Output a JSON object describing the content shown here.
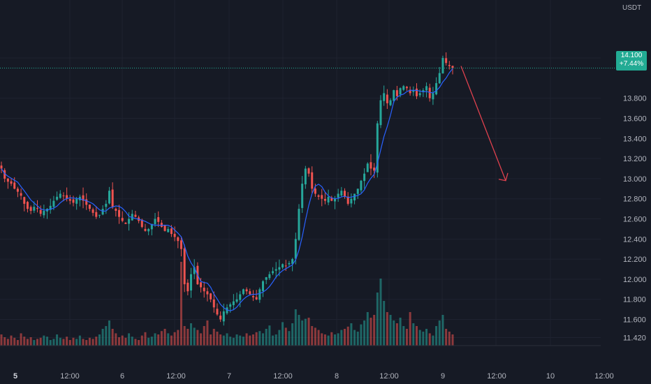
{
  "price_axis": {
    "currency": "USDT",
    "ticks": [
      "14.200",
      "13.800",
      "13.600",
      "13.400",
      "13.200",
      "13.000",
      "12.800",
      "12.600",
      "12.400",
      "12.200",
      "12.000",
      "11.800",
      "11.600",
      "11.420"
    ],
    "tick_values": [
      14.2,
      13.8,
      13.6,
      13.4,
      13.2,
      13.0,
      12.8,
      12.6,
      12.4,
      12.2,
      12.0,
      11.8,
      11.6,
      11.42
    ]
  },
  "last_price": {
    "value": "14.100",
    "change": "+7.44%"
  },
  "time_axis": {
    "labels": [
      {
        "text": "5",
        "major": true
      },
      {
        "text": "12:00",
        "major": false
      },
      {
        "text": "6",
        "major": false
      },
      {
        "text": "12:00",
        "major": false
      },
      {
        "text": "7",
        "major": false
      },
      {
        "text": "12:00",
        "major": false
      },
      {
        "text": "8",
        "major": false
      },
      {
        "text": "12:00",
        "major": false
      },
      {
        "text": "9",
        "major": false
      },
      {
        "text": "12:00",
        "major": false
      },
      {
        "text": "10",
        "major": false
      },
      {
        "text": "12:00",
        "major": false
      }
    ]
  },
  "colors": {
    "up": "#26a69a",
    "down": "#ef5350",
    "ma": "#2962ff",
    "arrow": "#e0414e",
    "grid": "#1f2330",
    "background": "#161a25",
    "last_price_line": "#22ab94"
  },
  "chart_data": {
    "type": "candlestick",
    "ylim": [
      11.34,
      14.36
    ],
    "series_close": [
      13.1,
      13.0,
      12.97,
      12.95,
      12.9,
      12.87,
      12.83,
      12.75,
      12.7,
      12.68,
      12.72,
      12.7,
      12.65,
      12.68,
      12.7,
      12.73,
      12.78,
      12.82,
      12.85,
      12.83,
      12.8,
      12.78,
      12.76,
      12.8,
      12.82,
      12.78,
      12.74,
      12.7,
      12.66,
      12.62,
      12.64,
      12.7,
      12.75,
      12.88,
      12.72,
      12.68,
      12.62,
      12.58,
      12.55,
      12.6,
      12.65,
      12.62,
      12.58,
      12.52,
      12.48,
      12.5,
      12.55,
      12.6,
      12.57,
      12.52,
      12.48,
      12.5,
      12.45,
      12.42,
      12.38,
      12.3,
      11.95,
      11.88,
      12.05,
      12.12,
      11.95,
      11.92,
      11.88,
      11.85,
      11.8,
      11.72,
      11.65,
      11.6,
      11.68,
      11.72,
      11.75,
      11.78,
      11.8,
      11.85,
      11.9,
      11.88,
      11.85,
      11.82,
      11.8,
      11.9,
      11.98,
      12.02,
      12.05,
      12.08,
      12.1,
      12.12,
      12.15,
      12.13,
      12.16,
      12.2,
      12.4,
      12.7,
      12.95,
      13.1,
      13.05,
      12.9,
      12.85,
      12.82,
      12.8,
      12.78,
      12.82,
      12.78,
      12.8,
      12.85,
      12.88,
      12.82,
      12.75,
      12.8,
      12.85,
      12.9,
      12.98,
      13.05,
      13.15,
      13.1,
      13.08,
      13.55,
      13.78,
      13.85,
      13.75,
      13.78,
      13.88,
      13.82,
      13.9,
      13.92,
      13.9,
      13.85,
      13.88,
      13.82,
      13.85,
      13.88,
      13.92,
      13.8,
      13.85,
      13.95,
      14.05,
      14.2,
      14.15,
      14.12,
      14.1
    ],
    "volume_relative": [
      0.2,
      0.15,
      0.12,
      0.18,
      0.14,
      0.1,
      0.22,
      0.16,
      0.12,
      0.15,
      0.1,
      0.12,
      0.14,
      0.18,
      0.16,
      0.1,
      0.12,
      0.2,
      0.14,
      0.12,
      0.16,
      0.1,
      0.14,
      0.12,
      0.18,
      0.12,
      0.1,
      0.14,
      0.12,
      0.16,
      0.2,
      0.3,
      0.35,
      0.45,
      0.3,
      0.22,
      0.15,
      0.18,
      0.14,
      0.22,
      0.16,
      0.12,
      0.1,
      0.18,
      0.24,
      0.14,
      0.16,
      0.22,
      0.2,
      0.26,
      0.3,
      0.22,
      0.18,
      0.24,
      0.28,
      1.5,
      0.35,
      0.3,
      0.4,
      0.32,
      0.28,
      0.22,
      0.35,
      0.45,
      0.2,
      0.3,
      0.25,
      0.2,
      0.18,
      0.22,
      0.16,
      0.14,
      0.2,
      0.18,
      0.16,
      0.22,
      0.18,
      0.2,
      0.24,
      0.26,
      0.22,
      0.3,
      0.36,
      0.18,
      0.2,
      0.28,
      0.42,
      0.32,
      0.26,
      0.4,
      0.65,
      0.55,
      0.45,
      0.48,
      0.5,
      0.35,
      0.32,
      0.28,
      0.22,
      0.2,
      0.18,
      0.24,
      0.2,
      0.22,
      0.28,
      0.3,
      0.34,
      0.4,
      0.28,
      0.25,
      0.38,
      0.45,
      0.6,
      0.5,
      0.55,
      0.95,
      1.2,
      0.8,
      0.6,
      0.55,
      0.45,
      0.4,
      0.5,
      0.35,
      0.3,
      0.6,
      0.4,
      0.35,
      0.28,
      0.25,
      0.3,
      0.22,
      0.18,
      0.35,
      0.45,
      0.55,
      0.3,
      0.25,
      0.2
    ],
    "projection_arrow": {
      "from_value": 14.12,
      "to_value": 12.98
    }
  }
}
